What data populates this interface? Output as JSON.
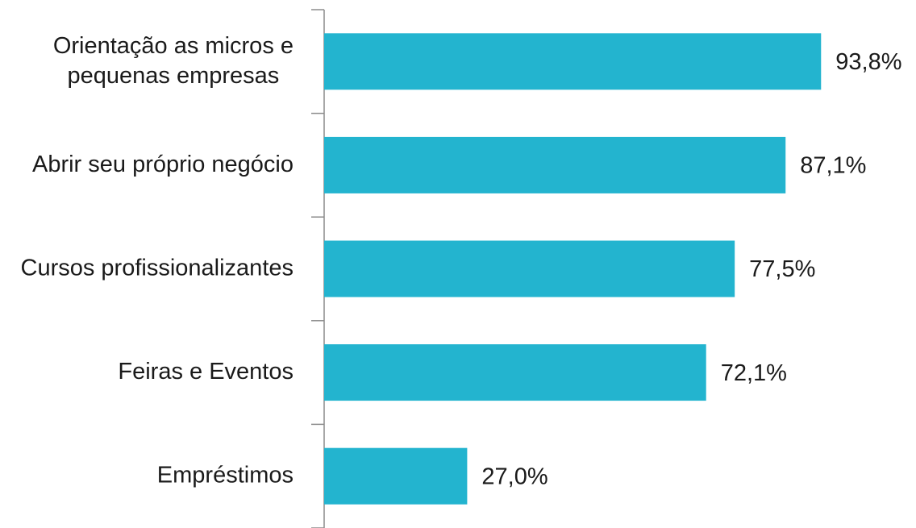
{
  "chart_data": {
    "type": "bar",
    "orientation": "horizontal",
    "categories": [
      "Orientação as micros e pequenas empresas",
      "Abrir seu próprio negócio",
      "Cursos profissionalizantes",
      "Feiras e Eventos",
      "Empréstimos"
    ],
    "values": [
      93.8,
      87.1,
      77.5,
      72.1,
      27.0
    ],
    "value_labels": [
      "93,8%",
      "87,1%",
      "77,5%",
      "72,1%",
      "27,0%"
    ],
    "color": "#23b4cf",
    "xlim": [
      0,
      100
    ]
  }
}
